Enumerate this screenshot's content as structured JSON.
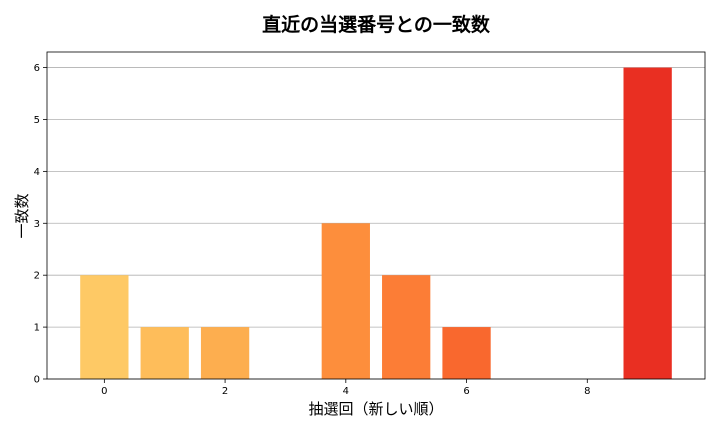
{
  "chart_data": {
    "type": "bar",
    "title": "直近の当選番号との一致数",
    "xlabel": "抽選回（新しい順）",
    "ylabel": "一致数",
    "x": [
      0,
      1,
      2,
      3,
      4,
      5,
      6,
      7,
      8,
      9
    ],
    "values": [
      2,
      1,
      1,
      0,
      3,
      2,
      1,
      0,
      0,
      6
    ],
    "colors": [
      "#fec965",
      "#febd5a",
      "#fdae4f",
      "#fd9e45",
      "#fd8e3c",
      "#fc7d36",
      "#f9682e",
      "#f55228",
      "#ef3e25",
      "#e92f22"
    ],
    "xticks": [
      0,
      2,
      4,
      6,
      8
    ],
    "yticks": [
      0,
      1,
      2,
      3,
      4,
      5,
      6
    ],
    "xlim": [
      -0.95,
      9.95
    ],
    "ylim": [
      0,
      6.3
    ],
    "grid": "y"
  }
}
